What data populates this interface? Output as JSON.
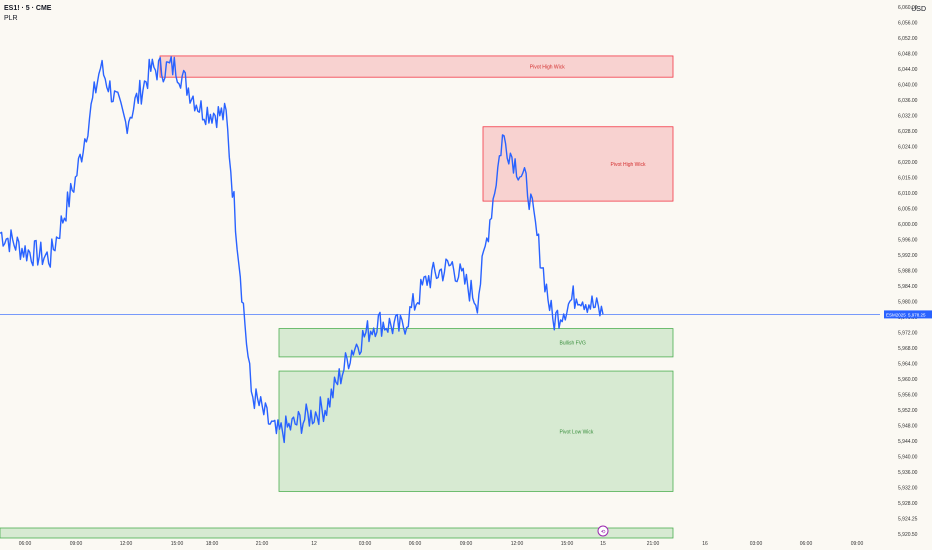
{
  "header": {
    "symbol": "ES1! · 5 · CME",
    "indicator": "PLR",
    "currency": "USD"
  },
  "price_axis": {
    "labels": [
      "6,060.00",
      "6,056.00",
      "6,052.00",
      "6,048.00",
      "6,044.00",
      "6,040.00",
      "6,036.00",
      "6,032.00",
      "6,028.00",
      "6,024.00",
      "6,020.00",
      "6,015.00",
      "6,010.00",
      "6,005.00",
      "6,000.00",
      "5,996.00",
      "5,992.00",
      "5,988.00",
      "5,984.00",
      "5,980.00",
      "5,976.00",
      "5,972.00",
      "5,968.00",
      "5,964.00",
      "5,960.00",
      "5,956.00",
      "5,952.00",
      "5,948.00",
      "5,944.00",
      "5,940.00",
      "5,936.00",
      "5,932.00",
      "5,928.00",
      "5,924.25",
      "5,920.50"
    ],
    "current_price_label": "5,978.25",
    "current_symbol_tag": "ESM2025"
  },
  "time_axis": {
    "labels": [
      "06:00",
      "09:00",
      "12:00",
      "15:00",
      "18:00",
      "21:00",
      "12",
      "03:00",
      "06:00",
      "09:00",
      "12:00",
      "15:00",
      "15",
      "21:00",
      "16",
      "03:00",
      "06:00",
      "09:00"
    ],
    "marker": "⟲"
  },
  "zones": [
    {
      "label": "Pivot High Wick",
      "kind": "bear",
      "p_top": 6051,
      "p_bottom": 6045
    },
    {
      "label": "Pivot High Wick",
      "kind": "bear",
      "p_top": 6031,
      "p_bottom": 6010
    },
    {
      "label": "Bullish FVG",
      "kind": "bull",
      "p_top": 5974,
      "p_bottom": 5966
    },
    {
      "label": "Pivot Low Wick",
      "kind": "bull",
      "p_top": 5962,
      "p_bottom": 5928
    }
  ],
  "colors": {
    "background": "#fbf9f3",
    "price_line": "#2962ff",
    "bear_fill": "rgba(242,54,69,0.2)",
    "bear_stroke": "#f23645",
    "bull_fill": "rgba(76,175,80,0.2)",
    "bull_stroke": "#4caf50",
    "current_line": "#2962ff"
  },
  "chart_data": {
    "type": "line",
    "ylim": [
      5920.5,
      6062
    ],
    "xlabel": "",
    "ylabel": "",
    "x": [
      "06:00",
      "07:30",
      "09:00",
      "10:30",
      "12:00",
      "13:30",
      "15:00",
      "16:30",
      "18:00",
      "19:30",
      "21:00",
      "22:30",
      "12",
      "01:30",
      "03:00",
      "04:30",
      "06:00",
      "07:30",
      "09:00",
      "10:30",
      "12:00",
      "13:30",
      "15:00",
      "15:45",
      "16:30"
    ],
    "series": [
      {
        "values": [
          6001,
          5996,
          5994,
          6016,
          6048,
          6032,
          6047,
          6048,
          6036,
          6034,
          5956,
          5944,
          5948,
          5952,
          5968,
          5976,
          5974,
          5988,
          5992,
          5982,
          6028,
          6014,
          5976,
          5984,
          5978
        ]
      }
    ]
  }
}
